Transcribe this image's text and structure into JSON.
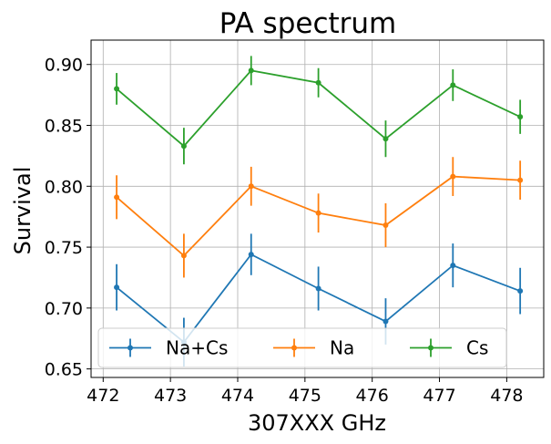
{
  "chart_data": {
    "type": "line",
    "title": "PA spectrum",
    "xlabel": "307XXX GHz",
    "ylabel": "Survival",
    "xlim": [
      471.82,
      478.55
    ],
    "ylim": [
      0.643,
      0.92
    ],
    "x_ticks": [
      472,
      473,
      474,
      475,
      476,
      477,
      478
    ],
    "y_ticks": [
      0.65,
      0.7,
      0.75,
      0.8,
      0.85,
      0.9
    ],
    "y_tick_labels": [
      "0.65",
      "0.70",
      "0.75",
      "0.80",
      "0.85",
      "0.90"
    ],
    "grid": true,
    "legend_position": "bottom",
    "x": [
      472.2,
      473.2,
      474.2,
      475.2,
      476.2,
      477.2,
      478.2
    ],
    "series": [
      {
        "name": "Na+Cs",
        "color": "#1f77b4",
        "values": [
          0.717,
          0.672,
          0.744,
          0.716,
          0.689,
          0.735,
          0.714
        ],
        "errors": [
          0.019,
          0.02,
          0.017,
          0.018,
          0.019,
          0.018,
          0.019
        ]
      },
      {
        "name": "Na",
        "color": "#ff7f0e",
        "values": [
          0.791,
          0.743,
          0.8,
          0.778,
          0.768,
          0.808,
          0.805
        ],
        "errors": [
          0.018,
          0.018,
          0.016,
          0.016,
          0.018,
          0.016,
          0.016
        ]
      },
      {
        "name": "Cs",
        "color": "#2ca02c",
        "values": [
          0.88,
          0.833,
          0.895,
          0.885,
          0.839,
          0.883,
          0.857
        ],
        "errors": [
          0.013,
          0.015,
          0.012,
          0.012,
          0.015,
          0.013,
          0.014
        ]
      }
    ]
  }
}
